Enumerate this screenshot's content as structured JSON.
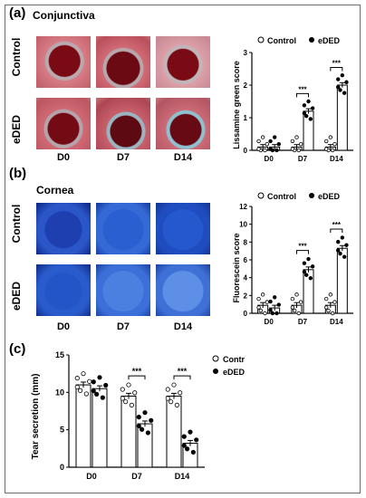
{
  "colors": {
    "control_fill": "#ffffff",
    "eded_fill": "#000000",
    "sig": "#000000"
  },
  "panel_a": {
    "letter": "(a)",
    "title": "Conjunctiva",
    "rows": [
      "Control",
      "eDED"
    ],
    "cols": [
      "D0",
      "D7",
      "D14"
    ],
    "chart": {
      "type": "bar",
      "ylabel": "Lissamine green score",
      "legend": [
        "Control",
        "eDED"
      ],
      "categories": [
        "D0",
        "D7",
        "D14"
      ],
      "ylim": [
        0,
        3
      ],
      "yticks": [
        "0",
        "1",
        "2",
        "3"
      ],
      "series": [
        {
          "name": "Control",
          "values": [
            0.1,
            0.1,
            0.1
          ]
        },
        {
          "name": "eDED",
          "values": [
            0.1,
            1.2,
            2.0
          ]
        }
      ],
      "significance": [
        "***",
        "***"
      ]
    }
  },
  "panel_b": {
    "letter": "(b)",
    "title": "Cornea",
    "rows": [
      "Control",
      "eDED"
    ],
    "cols": [
      "D0",
      "D7",
      "D14"
    ],
    "chart": {
      "type": "bar",
      "ylabel": "Fluorescein score",
      "legend": [
        "Control",
        "eDED"
      ],
      "categories": [
        "D0",
        "D7",
        "D14"
      ],
      "ylim": [
        0,
        12
      ],
      "yticks": [
        "0",
        "2",
        "4",
        "6",
        "8",
        "10",
        "12"
      ],
      "series": [
        {
          "name": "Control",
          "values": [
            0.9,
            0.9,
            0.9
          ]
        },
        {
          "name": "eDED",
          "values": [
            0.6,
            4.9,
            7.3
          ]
        }
      ],
      "significance": [
        "***",
        "***"
      ]
    }
  },
  "panel_c": {
    "letter": "(c)",
    "chart": {
      "type": "bar",
      "ylabel": "Tear secretion (mm)",
      "legend": [
        "Control",
        "eDED"
      ],
      "categories": [
        "D0",
        "D7",
        "D14"
      ],
      "ylim": [
        0,
        15
      ],
      "yticks": [
        "0",
        "5",
        "10",
        "15"
      ],
      "series": [
        {
          "name": "Control",
          "values": [
            11.0,
            9.5,
            9.5
          ]
        },
        {
          "name": "eDED",
          "values": [
            10.5,
            5.8,
            3.2
          ]
        }
      ],
      "significance": [
        "***",
        "***"
      ]
    }
  },
  "chart_data": [
    {
      "type": "bar",
      "ylabel": "Lissamine green score",
      "categories": [
        "D0",
        "D7",
        "D14"
      ],
      "ylim": [
        0,
        3
      ],
      "series": [
        {
          "name": "Control",
          "values": [
            0.1,
            0.1,
            0.1
          ]
        },
        {
          "name": "eDED",
          "values": [
            0.1,
            1.2,
            2.0
          ]
        }
      ],
      "legend": "top"
    },
    {
      "type": "bar",
      "ylabel": "Fluorescein score",
      "categories": [
        "D0",
        "D7",
        "D14"
      ],
      "ylim": [
        0,
        12
      ],
      "series": [
        {
          "name": "Control",
          "values": [
            0.9,
            0.9,
            0.9
          ]
        },
        {
          "name": "eDED",
          "values": [
            0.6,
            4.9,
            7.3
          ]
        }
      ],
      "legend": "top"
    },
    {
      "type": "bar",
      "ylabel": "Tear secretion (mm)",
      "categories": [
        "D0",
        "D7",
        "D14"
      ],
      "ylim": [
        0,
        15
      ],
      "series": [
        {
          "name": "Control",
          "values": [
            11.0,
            9.5,
            9.5
          ]
        },
        {
          "name": "eDED",
          "values": [
            10.5,
            5.8,
            3.2
          ]
        }
      ],
      "legend": "top-right"
    }
  ]
}
